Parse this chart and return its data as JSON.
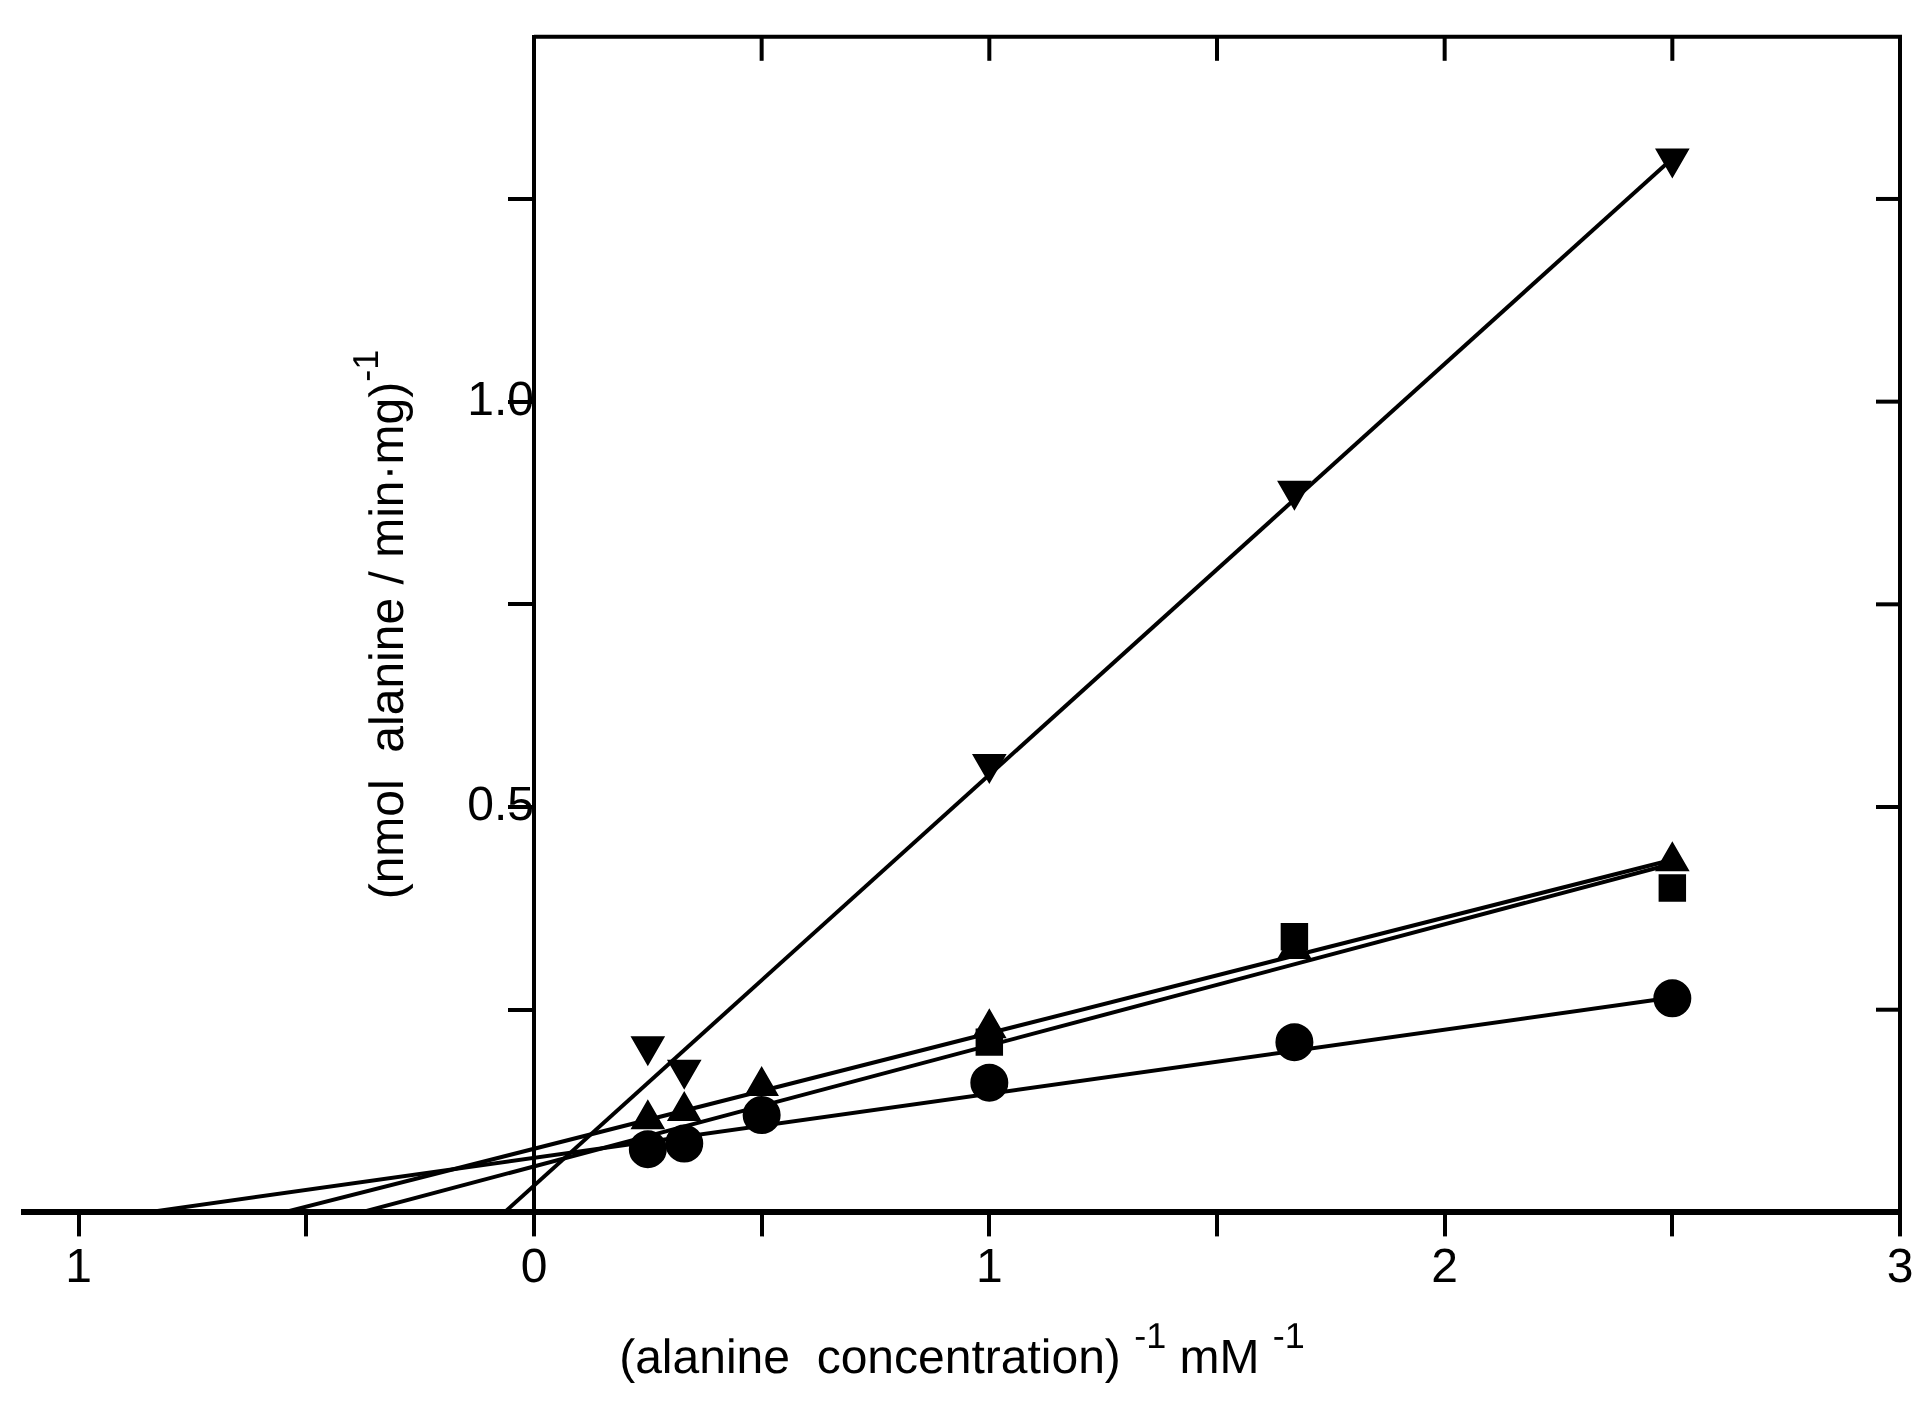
{
  "chart_data": {
    "type": "scatter",
    "xlabel": "(alanine  concentration) $^{-1}$ mM $^{-1}$",
    "ylabel": "(nmol  alanine / min·mg)$^{-1}$",
    "xlim": [
      -1.12,
      3
    ],
    "ylim": [
      0,
      1.45
    ],
    "xticks": [
      {
        "value": -1,
        "label": "1"
      },
      {
        "value": -0.5,
        "label": null
      },
      0,
      {
        "value": 0.5,
        "label": null
      },
      1,
      {
        "value": 1.5,
        "label": null
      },
      2,
      {
        "value": 2.5,
        "label": null
      },
      3
    ],
    "yticks": [
      {
        "value": 0.25,
        "label": null
      },
      {
        "value": 0.5,
        "label": "0.5"
      },
      {
        "value": 0.75,
        "label": null
      },
      {
        "value": 1,
        "label": "1.0"
      },
      {
        "value": 1.25,
        "label": null
      }
    ],
    "grid": false,
    "legend": false,
    "series": [
      {
        "type": "line",
        "marker": "none",
        "color": "#000000",
        "x": [
          -0.065,
          2.5
        ],
        "values": [
          0,
          1.3
        ]
      },
      {
        "type": "line",
        "marker": "none",
        "color": "#000000",
        "x": [
          -0.55,
          2.5
        ],
        "values": [
          0,
          0.435
        ]
      },
      {
        "type": "line",
        "marker": "none",
        "color": "#000000",
        "x": [
          -0.38,
          2.5
        ],
        "values": [
          0,
          0.43
        ]
      },
      {
        "type": "line",
        "marker": "none",
        "color": "#000000",
        "x": [
          -0.85,
          2.5
        ],
        "values": [
          0,
          0.265
        ]
      },
      {
        "type": "scatter",
        "marker": "triangle-down",
        "color": "#000000",
        "x": [
          0.25,
          0.33,
          1,
          1.67,
          2.5
        ],
        "values": [
          0.205,
          0.176,
          0.553,
          0.89,
          1.3
        ]
      },
      {
        "type": "scatter",
        "marker": "triangle",
        "color": "#000000",
        "x": [
          0.25,
          0.33,
          0.5,
          1,
          1.67,
          2.5
        ],
        "values": [
          0.115,
          0.125,
          0.156,
          0.227,
          0.325,
          0.433
        ]
      },
      {
        "type": "scatter",
        "marker": "square",
        "color": "#000000",
        "x": [
          1,
          1.67,
          2.5
        ],
        "values": [
          0.21,
          0.34,
          0.4
        ]
      },
      {
        "type": "scatter",
        "marker": "circle",
        "color": "#000000",
        "x": [
          0.25,
          0.33,
          0.5,
          1,
          1.67,
          2.5
        ],
        "values": [
          0.078,
          0.085,
          0.12,
          0.16,
          0.21,
          0.264
        ]
      }
    ]
  }
}
